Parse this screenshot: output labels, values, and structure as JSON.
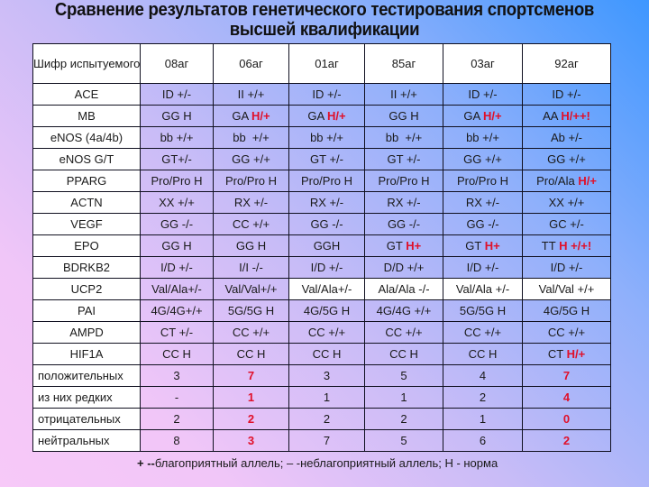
{
  "title": {
    "line1": "Сравнение результатов генетического тестирования спортсменов",
    "line2": "высшей квалификации"
  },
  "colors": {
    "highlight": "#e0102a",
    "background_top_right": "#3e97ff",
    "background_bottom_left": "#f7c9f8",
    "cell_white": "#ffffff"
  },
  "table": {
    "header": {
      "label": "Шифр испытуемого",
      "columns": [
        "08аг",
        "06аг",
        "01аг",
        "85аг",
        "03аг",
        "92аг"
      ]
    },
    "gene_rows": [
      {
        "gene": "ACE",
        "cells": [
          {
            "base": "ID +/-",
            "hl": ""
          },
          {
            "base": "II +/+",
            "hl": ""
          },
          {
            "base": "ID +/-",
            "hl": ""
          },
          {
            "base": "II +/+",
            "hl": ""
          },
          {
            "base": "ID +/-",
            "hl": ""
          },
          {
            "base": "ID +/-",
            "hl": ""
          }
        ]
      },
      {
        "gene": "MB",
        "cells": [
          {
            "base": "GG H",
            "hl": ""
          },
          {
            "base": "GA ",
            "hl": "H/+"
          },
          {
            "base": "GA ",
            "hl": "H/+"
          },
          {
            "base": "GG H",
            "hl": ""
          },
          {
            "base": "GA ",
            "hl": "H/+"
          },
          {
            "base": "AA ",
            "hl": "H/++!"
          }
        ]
      },
      {
        "gene": "eNOS (4a/4b)",
        "cells": [
          {
            "base": "bb +/+",
            "hl": ""
          },
          {
            "base": "bb  +/+",
            "hl": ""
          },
          {
            "base": "bb +/+",
            "hl": ""
          },
          {
            "base": "bb  +/+",
            "hl": ""
          },
          {
            "base": "bb +/+",
            "hl": ""
          },
          {
            "base": "Ab +/-",
            "hl": ""
          }
        ]
      },
      {
        "gene": "eNOS G/T",
        "cells": [
          {
            "base": "GT+/-",
            "hl": ""
          },
          {
            "base": "GG +/+",
            "hl": ""
          },
          {
            "base": "GT +/-",
            "hl": ""
          },
          {
            "base": "GT +/-",
            "hl": ""
          },
          {
            "base": "GG +/+",
            "hl": ""
          },
          {
            "base": "GG +/+",
            "hl": ""
          }
        ]
      },
      {
        "gene": "PPARG",
        "cells": [
          {
            "base": "Pro/Pro H",
            "hl": ""
          },
          {
            "base": "Pro/Pro H",
            "hl": ""
          },
          {
            "base": "Pro/Pro H",
            "hl": ""
          },
          {
            "base": "Pro/Pro H",
            "hl": ""
          },
          {
            "base": "Pro/Pro H",
            "hl": ""
          },
          {
            "base": "Pro/Ala ",
            "hl": "H/+"
          }
        ]
      },
      {
        "gene": "ACTN",
        "cells": [
          {
            "base": "XX +/+",
            "hl": ""
          },
          {
            "base": "RX +/-",
            "hl": ""
          },
          {
            "base": "RX +/-",
            "hl": ""
          },
          {
            "base": "RX +/-",
            "hl": ""
          },
          {
            "base": "RX +/-",
            "hl": ""
          },
          {
            "base": "XX +/+",
            "hl": ""
          }
        ]
      },
      {
        "gene": "VEGF",
        "cells": [
          {
            "base": "GG -/-",
            "hl": ""
          },
          {
            "base": "CC +/+",
            "hl": ""
          },
          {
            "base": "GG -/-",
            "hl": ""
          },
          {
            "base": "GG -/-",
            "hl": ""
          },
          {
            "base": "GG -/-",
            "hl": ""
          },
          {
            "base": "GC +/-",
            "hl": ""
          }
        ]
      },
      {
        "gene": "EPO",
        "cells": [
          {
            "base": "GG H",
            "hl": ""
          },
          {
            "base": "GG H",
            "hl": ""
          },
          {
            "base": "GGH",
            "hl": ""
          },
          {
            "base": "GT ",
            "hl": "H+"
          },
          {
            "base": "GT ",
            "hl": "H+"
          },
          {
            "base": "TT ",
            "hl": "H +/+!"
          }
        ]
      },
      {
        "gene": "BDRKB2",
        "cells": [
          {
            "base": "I/D +/-",
            "hl": ""
          },
          {
            "base": "I/I -/-",
            "hl": ""
          },
          {
            "base": "I/D +/-",
            "hl": ""
          },
          {
            "base": "D/D +/+",
            "hl": ""
          },
          {
            "base": "I/D +/-",
            "hl": ""
          },
          {
            "base": "I/D +/-",
            "hl": ""
          }
        ]
      },
      {
        "gene": "UCP2",
        "cells": [
          {
            "base": "Val/Ala+/-",
            "hl": ""
          },
          {
            "base": "Val/Val+/+",
            "hl": ""
          },
          {
            "base": "Val/Ala+/-",
            "hl": ""
          },
          {
            "base": "Ala/Ala -/-",
            "hl": ""
          },
          {
            "base": "Val/Ala +/-",
            "hl": ""
          },
          {
            "base": "Val/Val +/+",
            "hl": ""
          }
        ]
      },
      {
        "gene": "PAI",
        "cells": [
          {
            "base": "4G/4G+/+",
            "hl": ""
          },
          {
            "base": "5G/5G H",
            "hl": ""
          },
          {
            "base": "4G/5G H",
            "hl": ""
          },
          {
            "base": "4G/4G +/+",
            "hl": ""
          },
          {
            "base": "5G/5G H",
            "hl": ""
          },
          {
            "base": "4G/5G H",
            "hl": ""
          }
        ]
      },
      {
        "gene": "AMPD",
        "cells": [
          {
            "base": "CT +/-",
            "hl": ""
          },
          {
            "base": "CC +/+",
            "hl": ""
          },
          {
            "base": "CC +/+",
            "hl": ""
          },
          {
            "base": "CC +/+",
            "hl": ""
          },
          {
            "base": "CC +/+",
            "hl": ""
          },
          {
            "base": "CC +/+",
            "hl": ""
          }
        ]
      },
      {
        "gene": "HIF1A",
        "cells": [
          {
            "base": "CC H",
            "hl": ""
          },
          {
            "base": "CC H",
            "hl": ""
          },
          {
            "base": "CC H",
            "hl": ""
          },
          {
            "base": "CC H",
            "hl": ""
          },
          {
            "base": "CC H",
            "hl": ""
          },
          {
            "base": "CT ",
            "hl": "H/+"
          }
        ]
      }
    ],
    "summary_rows": [
      {
        "label": "положительных",
        "values": [
          "3",
          "7",
          "3",
          "5",
          "4",
          "7"
        ]
      },
      {
        "label": "из них редких",
        "values": [
          "-",
          "1",
          "1",
          "1",
          "2",
          "4"
        ]
      },
      {
        "label": "отрицательных",
        "values": [
          "2",
          "2",
          "2",
          "2",
          "1",
          "0"
        ]
      },
      {
        "label": "нейтральных",
        "values": [
          "8",
          "3",
          "7",
          "5",
          "6",
          "2"
        ]
      }
    ],
    "summary_highlight_columns": [
      "06аг",
      "92аг"
    ]
  },
  "legend": {
    "bold_prefix": "+ --",
    "text": "благоприятный аллель; – -неблагоприятный аллель; Н - норма"
  }
}
